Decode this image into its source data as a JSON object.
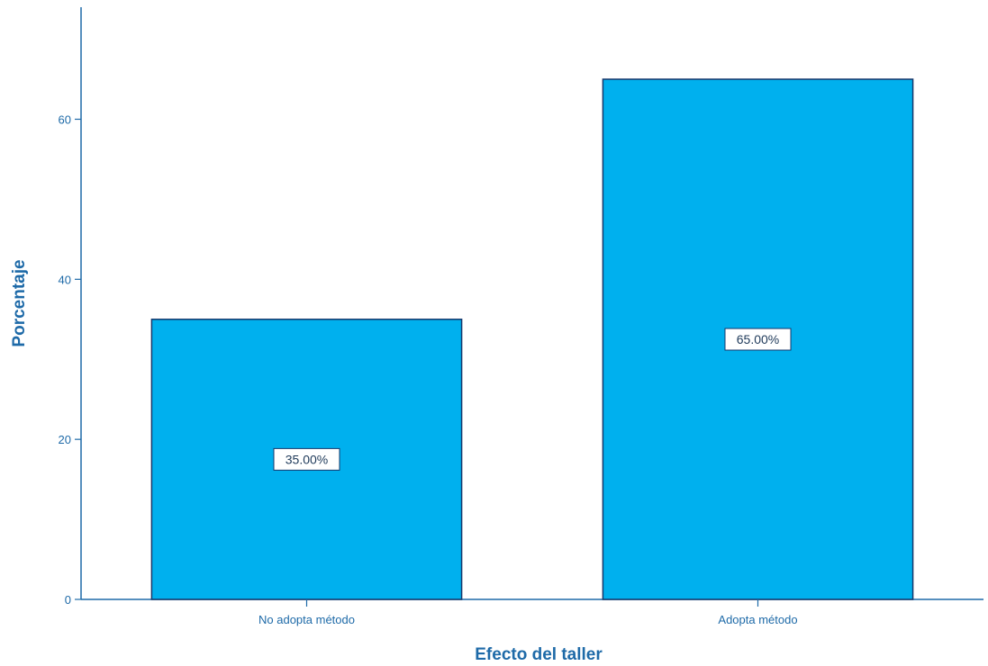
{
  "chart_data": {
    "type": "bar",
    "categories": [
      "No adopta método",
      "Adopta método"
    ],
    "values": [
      35,
      65
    ],
    "data_labels": [
      "35.00%",
      "65.00%"
    ],
    "title": "",
    "xlabel": "Efecto del taller",
    "ylabel": "Porcentaje",
    "ylim": [
      0,
      74
    ],
    "yticks": [
      0,
      20,
      40,
      60
    ],
    "ytick_labels": [
      "0",
      "20",
      "40",
      "60"
    ],
    "grid": false,
    "legend": "none",
    "colors": {
      "bar_fill": "#00B0EE",
      "bar_stroke": "#16376B",
      "axis": "#1E6AA8",
      "text": "#1E6AA8",
      "label_box_fill": "#FFFFFF",
      "label_box_stroke": "#16376B"
    }
  }
}
